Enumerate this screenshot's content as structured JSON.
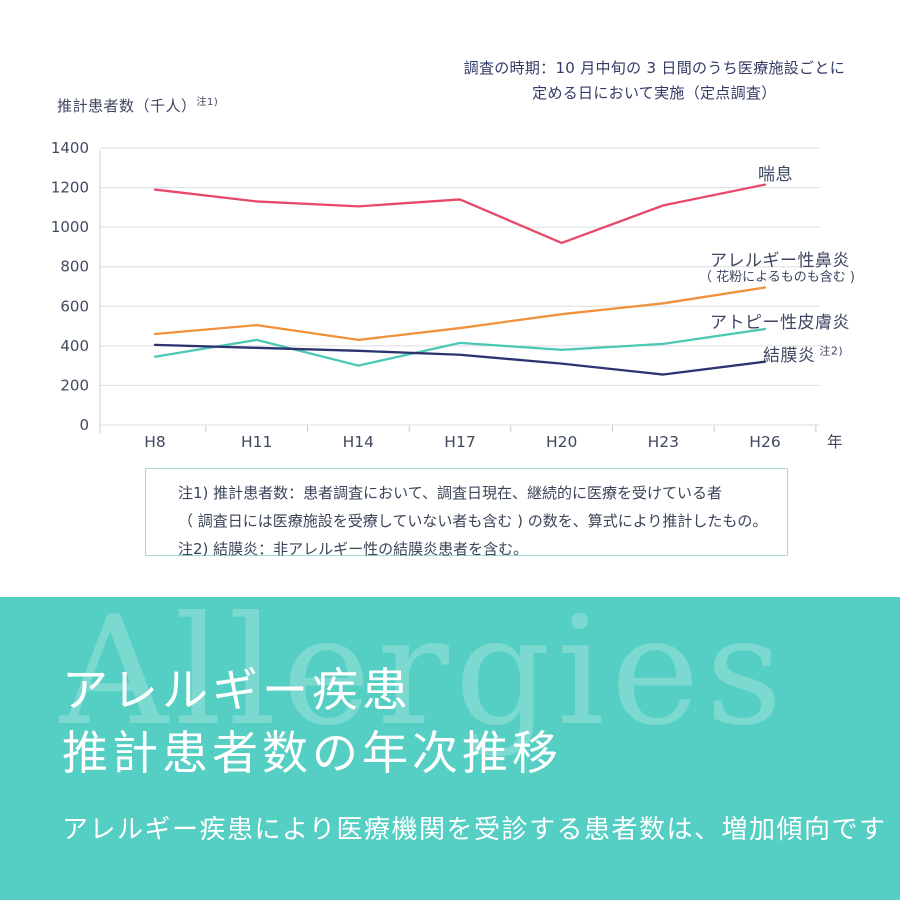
{
  "header": {
    "survey_note_line1": "調査の時期：10 月中旬の 3 日間のうち医療施設ごとに",
    "survey_note_line2": "定める日において実施（定点調査）"
  },
  "chart_data": {
    "type": "line",
    "title": "",
    "ylabel": "推計患者数（千人）",
    "ylabel_sup": "注1)",
    "xlabel_suffix": "年",
    "categories": [
      "H8",
      "H11",
      "H14",
      "H17",
      "H20",
      "H23",
      "H26"
    ],
    "ylim": [
      0,
      1400
    ],
    "ytick_step": 200,
    "grid": true,
    "legend_position": "right-inline",
    "series": [
      {
        "name": "喘息",
        "color": "#e8496a",
        "values": [
          1190,
          1130,
          1105,
          1140,
          920,
          1110,
          1215
        ]
      },
      {
        "name": "アレルギー性鼻炎",
        "note": "（ 花粉によるものも含む )",
        "color": "#f0923c",
        "values": [
          460,
          505,
          430,
          490,
          560,
          615,
          695
        ]
      },
      {
        "name": "アトピー性皮膚炎",
        "color": "#4cc8b6",
        "values": [
          345,
          430,
          300,
          415,
          380,
          410,
          485
        ]
      },
      {
        "name": "結膜炎",
        "sup": "注2)",
        "color": "#2c336f",
        "values": [
          405,
          390,
          375,
          355,
          310,
          255,
          320
        ]
      }
    ],
    "axis_color": "#c9ccd3",
    "grid_color": "#dcdee0",
    "tick_label_color": "#3f4a5e"
  },
  "notes": {
    "line1": "注1) 推計患者数：患者調査において、調査日現在、継続的に医療を受けている者",
    "line2": "（ 調査日には医療施設を受療していない者も含む ) の数を、算式により推計したもの。",
    "line3": "注2) 結膜炎：非アレルギー性の結膜炎患者を含む。"
  },
  "banner": {
    "watermark": "Allergies",
    "title_line1": "アレルギー疾患",
    "title_line2": "推計患者数の年次推移",
    "subtitle": "アレルギー疾患により医療機関を受診する患者数は、増加傾向です",
    "background_color": "#55cec4",
    "watermark_color": "#7bd9d0"
  }
}
